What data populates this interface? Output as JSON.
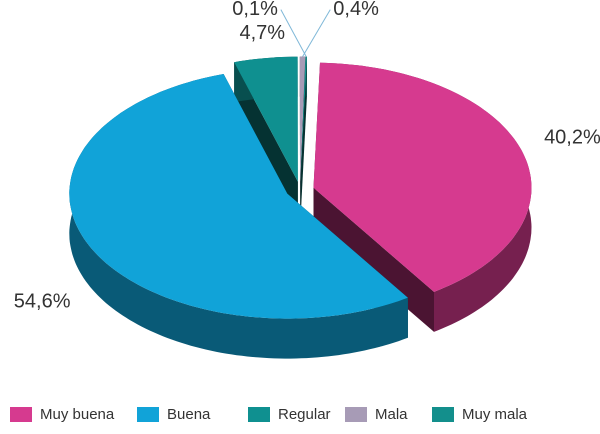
{
  "chart_data": {
    "type": "pie",
    "categories": [
      "Muy buena",
      "Buena",
      "Regular",
      "Mala",
      "Muy mala"
    ],
    "values": [
      40.2,
      54.6,
      4.7,
      0.4,
      0.1
    ],
    "value_labels": [
      "40,2%",
      "54,6%",
      "4,7%",
      "0,4%",
      "0,1%"
    ],
    "colors": [
      "#d63a8f",
      "#11a3d8",
      "#0f9090",
      "#a79bb6",
      "#138f8c"
    ],
    "legend": "bottom"
  }
}
